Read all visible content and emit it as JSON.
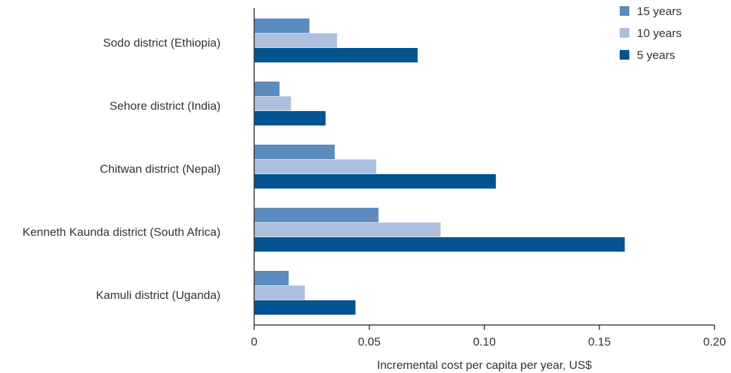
{
  "chart_data": {
    "type": "bar",
    "orientation": "horizontal",
    "categories": [
      "Sodo district (Ethiopia)",
      "Sehore district (India)",
      "Chitwan district (Nepal)",
      "Kenneth Kaunda district (South Africa)",
      "Kamuli district (Uganda)"
    ],
    "series": [
      {
        "name": "15 years",
        "color": "#5b8bbf",
        "values": [
          0.024,
          0.011,
          0.035,
          0.054,
          0.015
        ]
      },
      {
        "name": "10 years",
        "color": "#adbfdc",
        "values": [
          0.036,
          0.016,
          0.053,
          0.081,
          0.022
        ]
      },
      {
        "name": "5 years",
        "color": "#02538f",
        "values": [
          0.071,
          0.031,
          0.105,
          0.161,
          0.044
        ]
      }
    ],
    "xlabel": "Incremental cost per capita per year, US$",
    "ylabel": "",
    "title": "",
    "xlim": [
      0,
      0.2
    ],
    "xticks": [
      0,
      0.05,
      0.1,
      0.15,
      0.2
    ],
    "xtick_labels": [
      "0",
      "0.05",
      "0.10",
      "0.15",
      "0.20"
    ],
    "grid": false,
    "legend_position": "top-right"
  }
}
